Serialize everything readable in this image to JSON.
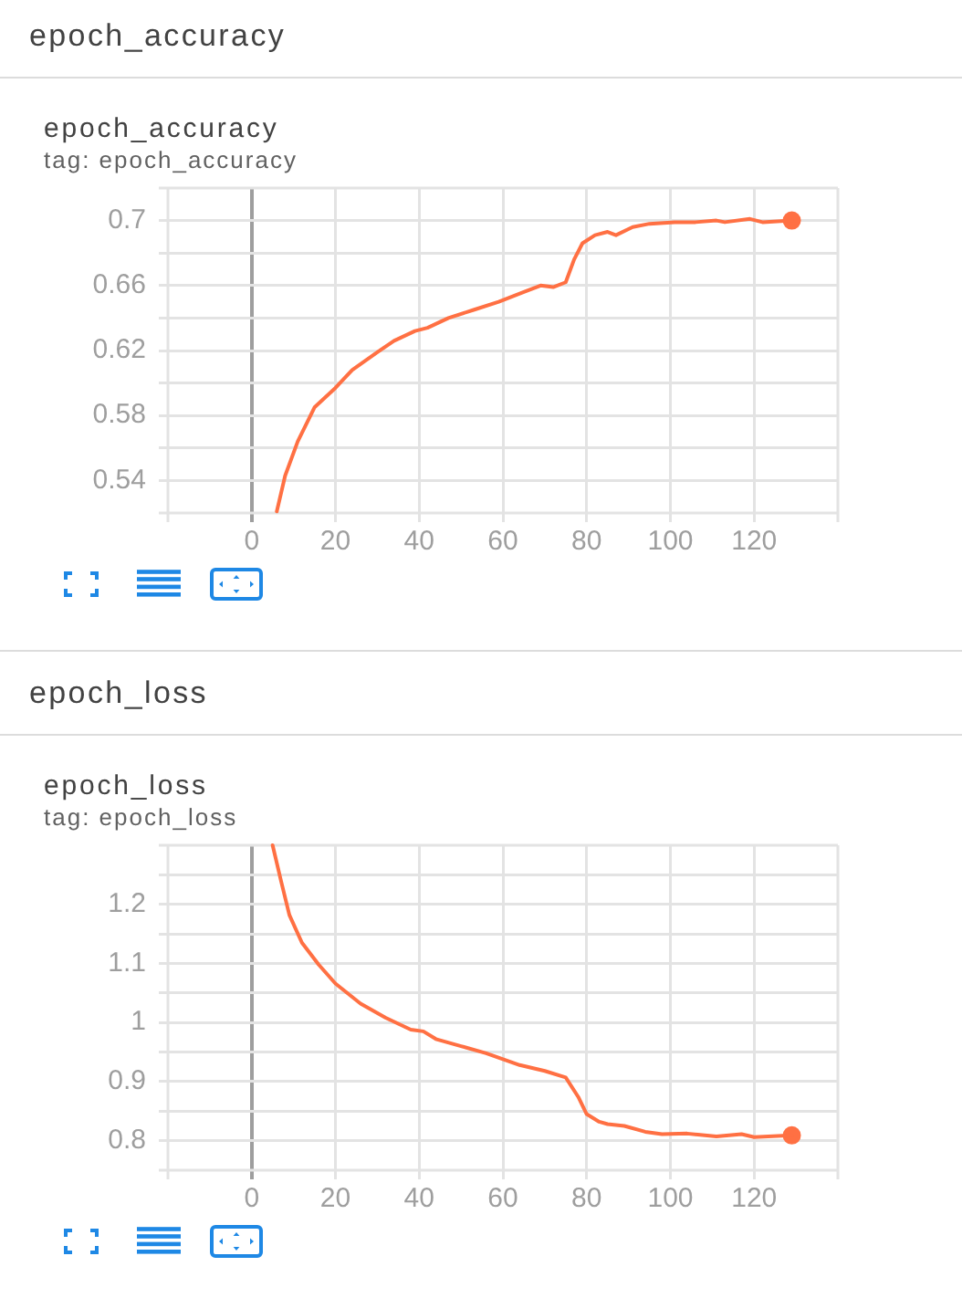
{
  "chart_data": [
    {
      "type": "line",
      "title": "epoch_accuracy",
      "subtitle": "tag: epoch_accuracy",
      "annotations": [
        "epoch_accuracy"
      ],
      "series": [
        {
          "color": "#ff7043",
          "x": [
            6,
            8,
            11,
            15,
            20,
            24,
            30,
            34,
            39,
            42,
            47,
            53,
            59,
            65,
            69,
            72,
            75,
            77,
            79,
            82,
            85,
            87,
            91,
            95,
            101,
            106,
            111,
            113,
            119,
            122,
            129
          ],
          "values": [
            0.521,
            0.543,
            0.564,
            0.585,
            0.597,
            0.608,
            0.619,
            0.626,
            0.632,
            0.634,
            0.64,
            0.645,
            0.65,
            0.656,
            0.66,
            0.659,
            0.662,
            0.676,
            0.686,
            0.691,
            0.693,
            0.691,
            0.696,
            0.698,
            0.699,
            0.699,
            0.7,
            0.699,
            0.701,
            0.699,
            0.7
          ]
        },
        {
          "type": "scatter",
          "color": "#ff7043",
          "marker": "circle",
          "x": [
            129
          ],
          "values": [
            0.7
          ]
        }
      ],
      "xlim": [
        -20,
        140
      ],
      "xticks": [
        0,
        20,
        40,
        60,
        80,
        100,
        120
      ],
      "ylim": [
        0.52,
        0.72
      ],
      "yticks": [
        0.54,
        {
          "value": 0.56,
          "label": null
        },
        0.58,
        {
          "value": 0.6,
          "label": null
        },
        0.62,
        {
          "value": 0.64,
          "label": null
        },
        0.66,
        {
          "value": 0.68,
          "label": null
        },
        0.7
      ],
      "grid": true,
      "legend": false,
      "marker": "none",
      "line_style": "solid"
    },
    {
      "type": "line",
      "title": "epoch_loss",
      "subtitle": "tag: epoch_loss",
      "annotations": [
        "epoch_loss"
      ],
      "series": [
        {
          "color": "#ff7043",
          "x": [
            5,
            7,
            9,
            12,
            16,
            20,
            26,
            32,
            38,
            41,
            44,
            50,
            56,
            60,
            64,
            70,
            75,
            78,
            80,
            83,
            85,
            89,
            94,
            98,
            104,
            111,
            117,
            120,
            129
          ],
          "values": [
            1.3,
            1.24,
            1.182,
            1.135,
            1.098,
            1.066,
            1.032,
            1.008,
            0.988,
            0.985,
            0.972,
            0.96,
            0.948,
            0.938,
            0.928,
            0.918,
            0.907,
            0.874,
            0.845,
            0.832,
            0.828,
            0.825,
            0.815,
            0.811,
            0.812,
            0.807,
            0.811,
            0.806,
            0.809
          ]
        },
        {
          "type": "scatter",
          "color": "#ff7043",
          "marker": "circle",
          "x": [
            129
          ],
          "values": [
            0.809
          ]
        }
      ],
      "xlim": [
        -20,
        140
      ],
      "xticks": [
        0,
        20,
        40,
        60,
        80,
        100,
        120
      ],
      "ylim": [
        0.75,
        1.3
      ],
      "yticks": [
        0.8,
        {
          "value": 0.85,
          "label": null
        },
        0.9,
        {
          "value": 0.95,
          "label": null
        },
        1,
        {
          "value": 1.05,
          "label": null
        },
        1.1,
        {
          "value": 1.15,
          "label": null
        },
        1.2,
        {
          "value": 1.25,
          "label": null
        }
      ],
      "grid": true,
      "legend": false,
      "marker": "none",
      "line_style": "solid"
    }
  ]
}
